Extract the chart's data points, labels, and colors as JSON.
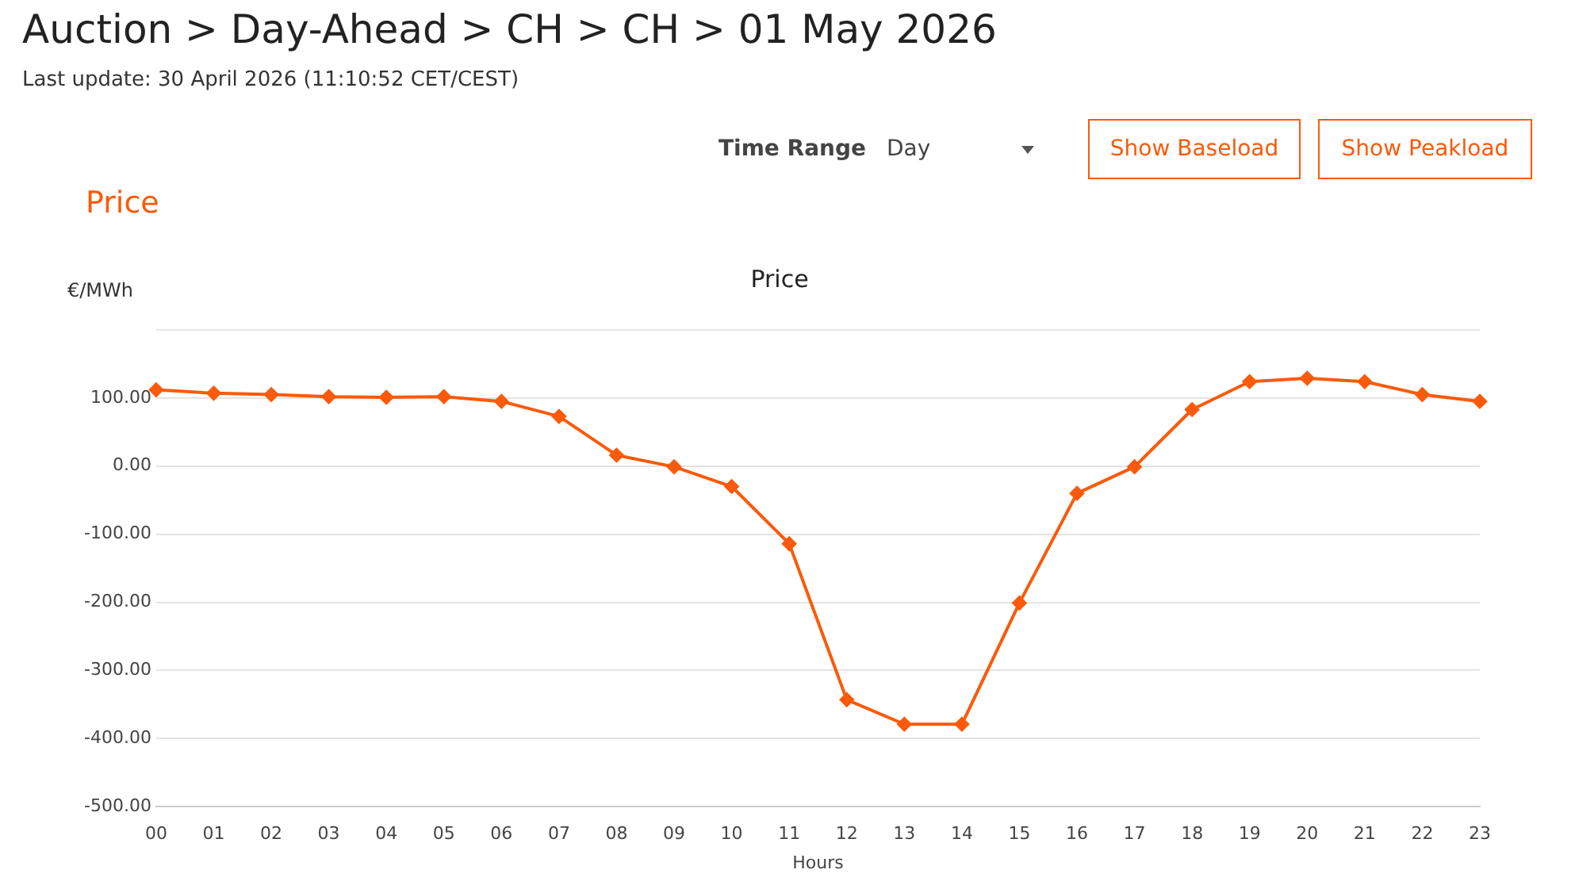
{
  "chart_data": {
    "type": "line",
    "title": "Auction > Day-Ahead > CH > CH > 01 May 2026",
    "subtitle": "Last update: 30 April 2026 (11:10:52 CET/CEST)",
    "annotations": [
      "Price",
      "Time Range",
      "Day",
      "Show Baseload",
      "Show Peakload",
      "Price"
    ],
    "xlabel": "Hours",
    "ylabel": "€/MWh",
    "categories": [
      "00",
      "01",
      "02",
      "03",
      "04",
      "05",
      "06",
      "07",
      "08",
      "09",
      "10",
      "11",
      "12",
      "13",
      "14",
      "15",
      "16",
      "17",
      "18",
      "19",
      "20",
      "21",
      "22",
      "23"
    ],
    "series": [
      {
        "color": "#fa5a0a",
        "values": [
          112,
          107,
          105,
          102,
          101,
          102,
          95,
          73,
          16,
          -1,
          -30,
          -114,
          -343,
          -379,
          -379,
          -201,
          -40,
          -1,
          83,
          124,
          129,
          124,
          105,
          95
        ]
      }
    ],
    "ylim": [
      -500,
      200
    ],
    "yticks": [
      {
        "value": -500,
        "label": "-500.00"
      },
      {
        "value": -400,
        "label": "-400.00"
      },
      {
        "value": -300,
        "label": "-300.00"
      },
      {
        "value": -200,
        "label": "-200.00"
      },
      {
        "value": -100,
        "label": "-100.00"
      },
      {
        "value": 0,
        "label": "0.00"
      },
      {
        "value": 100,
        "label": "100.00"
      },
      {
        "value": 200,
        "label": null
      }
    ],
    "grid": "y",
    "legend": false,
    "marker": "diamond",
    "line_style": "solid"
  }
}
